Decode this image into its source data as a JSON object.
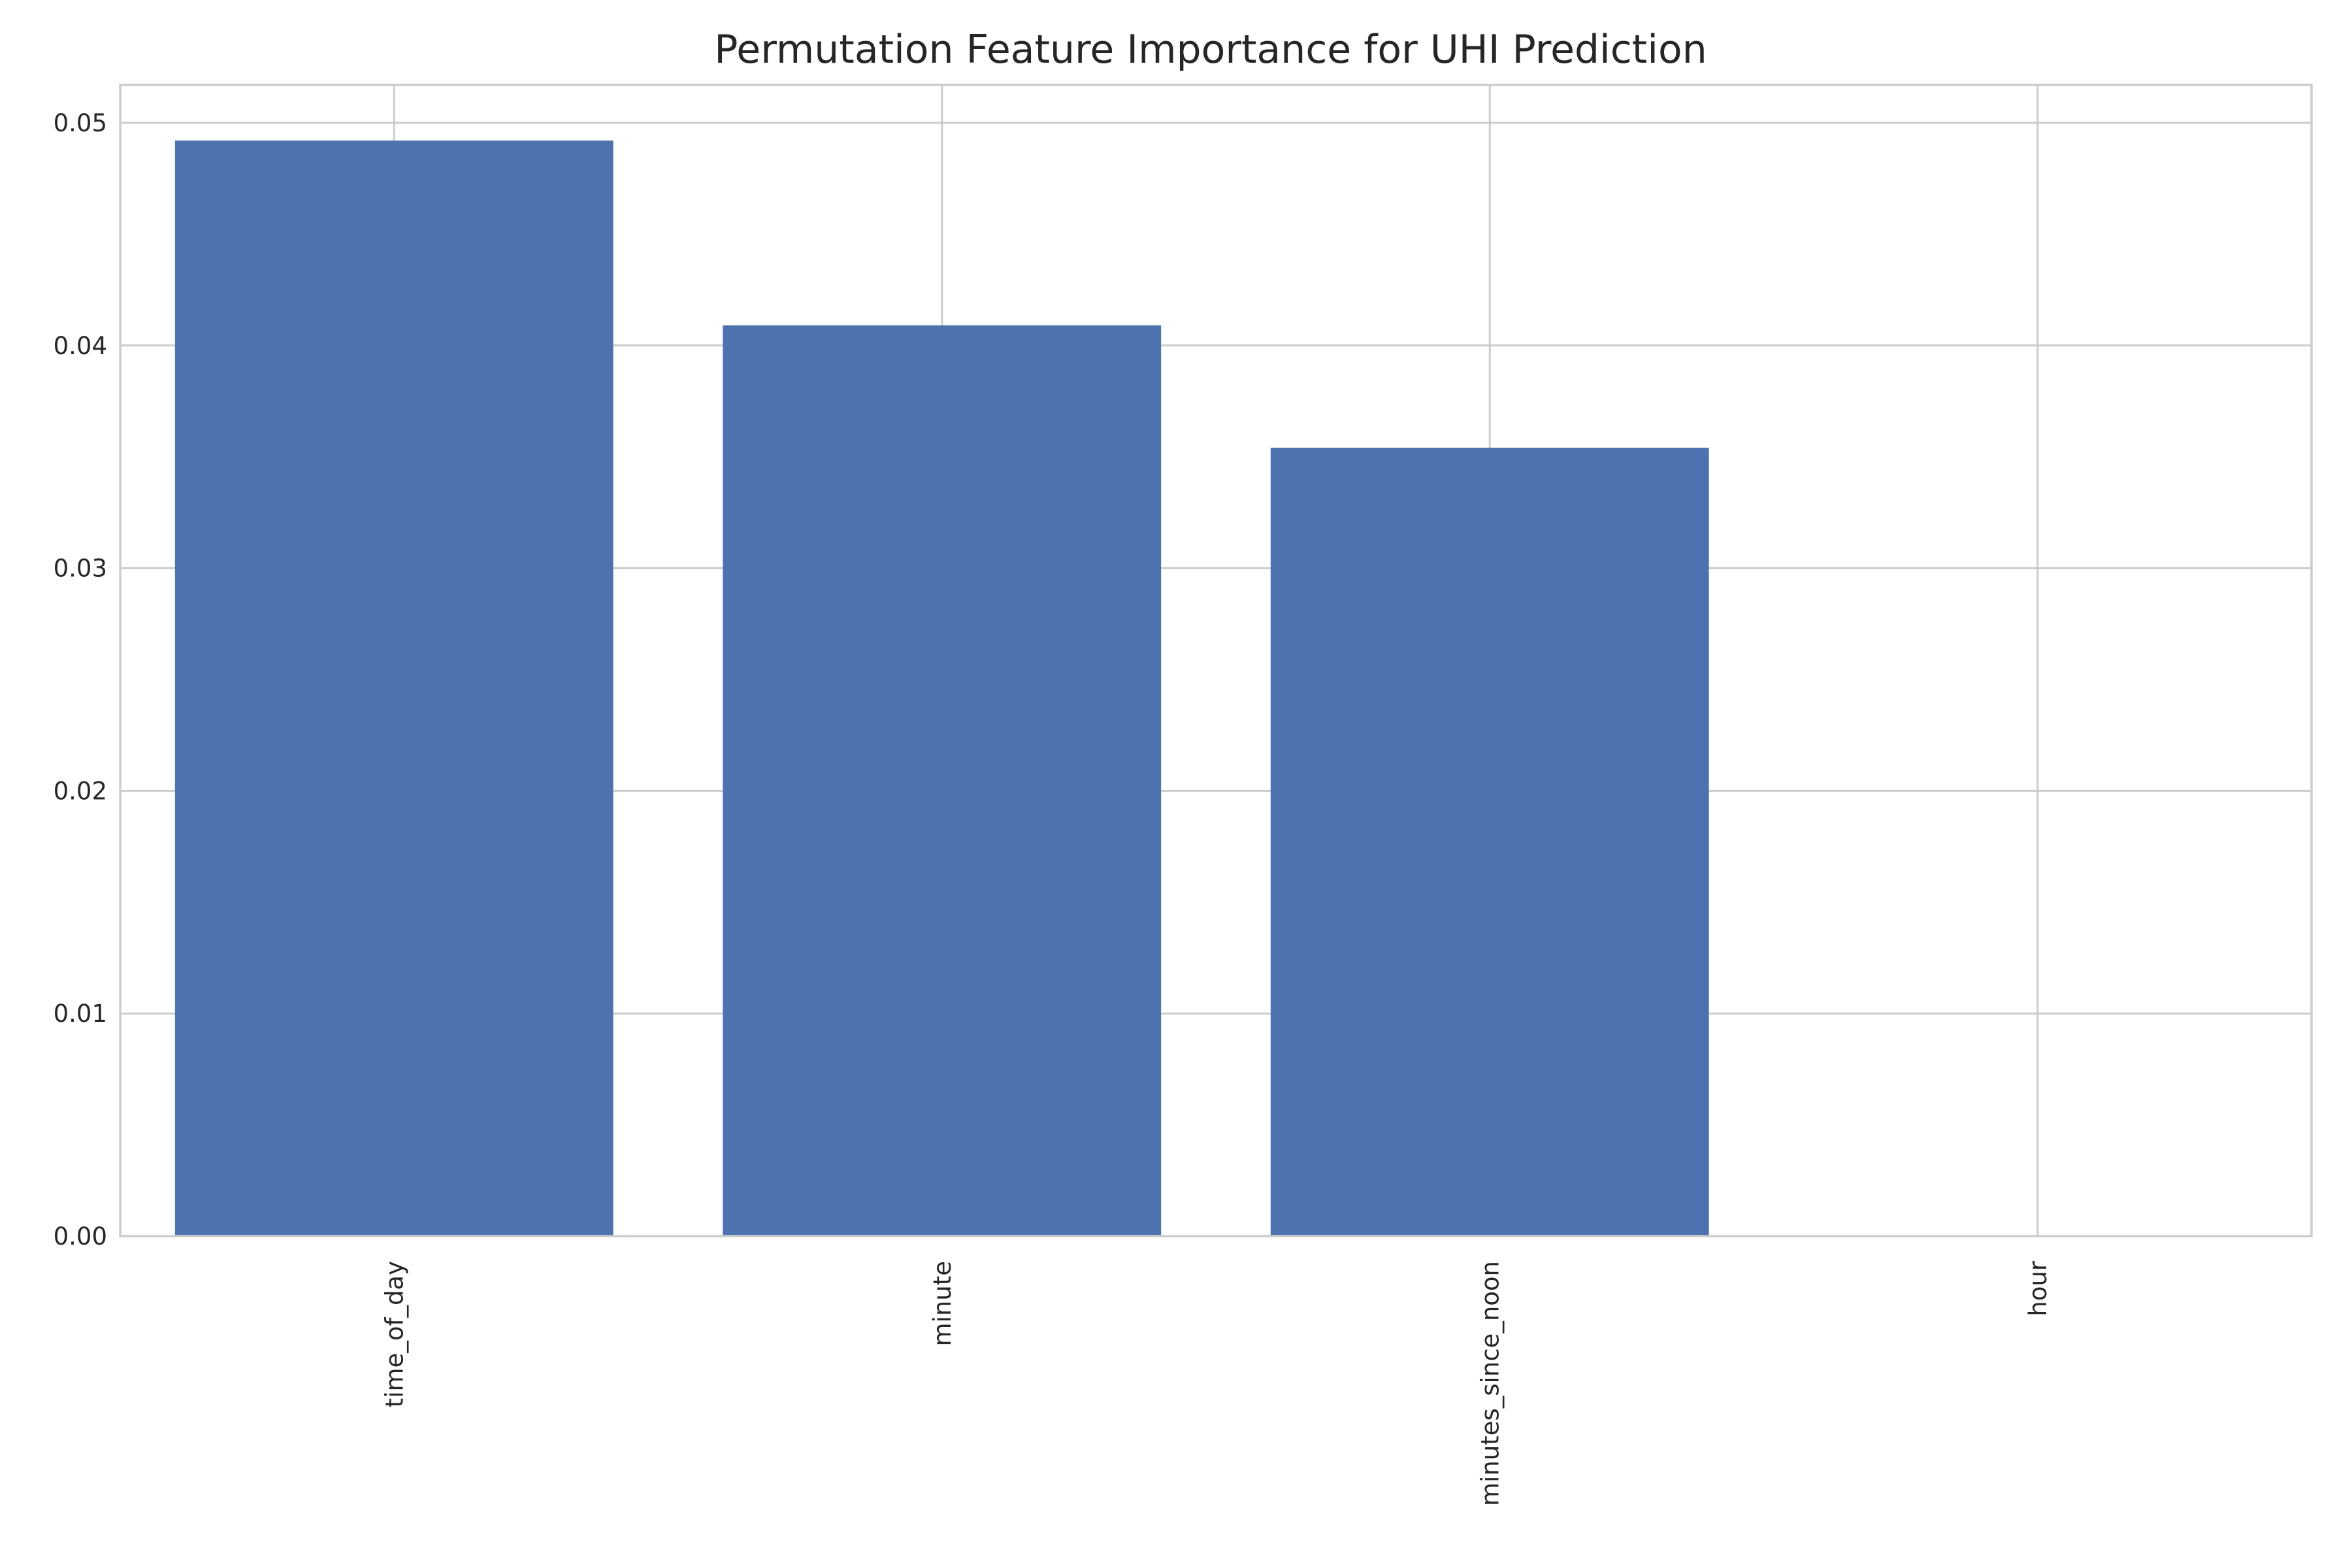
{
  "chart_data": {
    "type": "bar",
    "title": "Permutation Feature Importance for UHI Prediction",
    "xlabel": "",
    "ylabel": "",
    "categories": [
      "time_of_day",
      "minute",
      "minutes_since_noon",
      "hour"
    ],
    "values": [
      0.0492,
      0.0409,
      0.0354,
      0.0
    ],
    "ylim": [
      0,
      0.0517
    ],
    "y_ticks": [
      0.0,
      0.01,
      0.02,
      0.03,
      0.04,
      0.05
    ],
    "y_tick_labels": [
      "0.00",
      "0.01",
      "0.02",
      "0.03",
      "0.04",
      "0.05"
    ],
    "grid": true,
    "legend": "none",
    "colors": {
      "bar": "#4c72b0",
      "grid": "#cccccc",
      "frame": "#cccccc",
      "text": "#262626",
      "background": "#ffffff"
    }
  }
}
